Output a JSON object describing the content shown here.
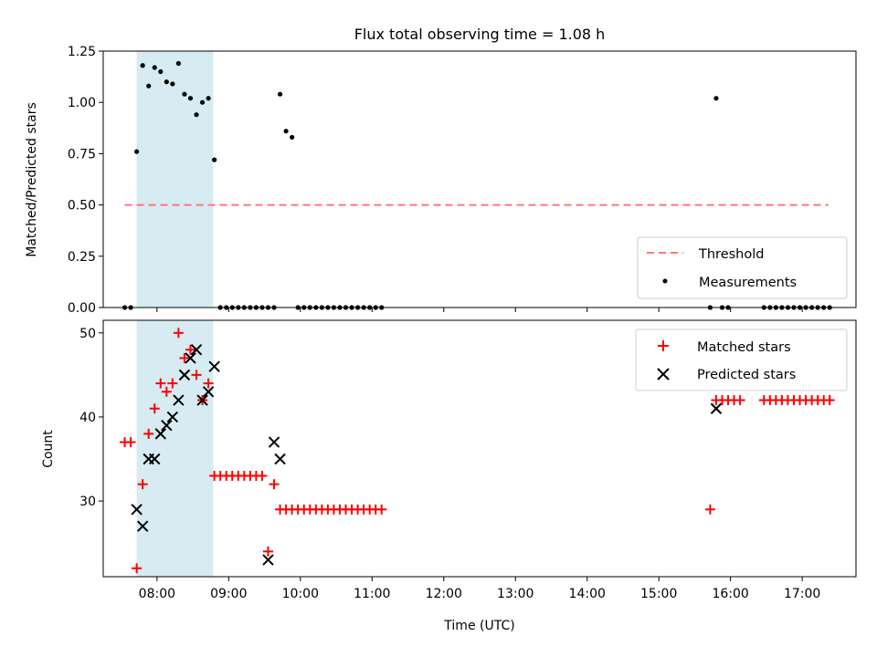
{
  "chart_data": [
    {
      "type": "scatter",
      "title": "Flux total observing time = 1.08 h",
      "ylabel": "Matched/Predicted stars",
      "xlabel": "",
      "ylim": [
        0,
        1.25
      ],
      "xlim": [
        "07:15",
        "17:45"
      ],
      "yticks": [
        "0.00",
        "0.25",
        "0.50",
        "0.75",
        "1.00",
        "1.25"
      ],
      "shaded_span": [
        "07:43",
        "08:47"
      ],
      "threshold": {
        "value": 0.5,
        "from": "07:33",
        "to": "17:22",
        "color": "#ff7777"
      },
      "legend": {
        "position": "lower-right",
        "entries": [
          "Threshold",
          "Measurements"
        ]
      },
      "series": [
        {
          "name": "Measurements",
          "color": "#000000",
          "x": [
            "07:33",
            "07:38",
            "07:43",
            "07:48",
            "07:53",
            "07:58",
            "08:03",
            "08:08",
            "08:13",
            "08:18",
            "08:23",
            "08:28",
            "08:33",
            "08:38",
            "08:43",
            "08:48",
            "08:53",
            "08:58",
            "09:03",
            "09:08",
            "09:13",
            "09:18",
            "09:23",
            "09:28",
            "09:33",
            "09:38",
            "09:43",
            "09:48",
            "09:53",
            "09:58",
            "10:03",
            "10:08",
            "10:13",
            "10:18",
            "10:23",
            "10:28",
            "10:33",
            "10:38",
            "10:43",
            "10:48",
            "10:53",
            "10:58",
            "11:03",
            "11:08",
            "15:43",
            "15:48",
            "15:53",
            "15:58",
            "16:28",
            "16:33",
            "16:38",
            "16:43",
            "16:48",
            "16:53",
            "16:58",
            "17:03",
            "17:08",
            "17:13",
            "17:18",
            "17:23"
          ],
          "y": [
            0,
            0,
            0.76,
            1.18,
            1.08,
            1.17,
            1.15,
            1.1,
            1.09,
            1.19,
            1.04,
            1.02,
            0.94,
            1.0,
            1.02,
            0.72,
            0,
            0,
            0,
            0,
            0,
            0,
            0,
            0,
            0,
            0,
            1.04,
            0.86,
            0.83,
            0,
            0,
            0,
            0,
            0,
            0,
            0,
            0,
            0,
            0,
            0,
            0,
            0,
            0,
            0,
            0,
            1.02,
            0,
            0,
            0,
            0,
            0,
            0,
            0,
            0,
            0,
            0,
            0,
            0,
            0,
            0
          ]
        }
      ]
    },
    {
      "type": "scatter",
      "title": "",
      "ylabel": "Count",
      "xlabel": "Time (UTC)",
      "ylim": [
        21,
        51.5
      ],
      "xlim": [
        "07:15",
        "17:45"
      ],
      "yticks": [
        "30",
        "40",
        "50"
      ],
      "xticks": [
        "08:00",
        "09:00",
        "10:00",
        "11:00",
        "12:00",
        "13:00",
        "14:00",
        "15:00",
        "16:00",
        "17:00"
      ],
      "shaded_span": [
        "07:43",
        "08:47"
      ],
      "legend": {
        "position": "top-right",
        "entries": [
          "Matched stars",
          "Predicted stars"
        ]
      },
      "series": [
        {
          "name": "Matched stars",
          "marker": "+",
          "color": "#ff0000",
          "x": [
            "07:33",
            "07:38",
            "07:43",
            "07:48",
            "07:53",
            "07:58",
            "08:03",
            "08:08",
            "08:13",
            "08:18",
            "08:23",
            "08:28",
            "08:33",
            "08:38",
            "08:43",
            "08:48",
            "08:53",
            "08:58",
            "09:03",
            "09:08",
            "09:13",
            "09:18",
            "09:23",
            "09:28",
            "09:33",
            "09:38",
            "09:43",
            "09:48",
            "09:53",
            "09:58",
            "10:03",
            "10:08",
            "10:13",
            "10:18",
            "10:23",
            "10:28",
            "10:33",
            "10:38",
            "10:43",
            "10:48",
            "10:53",
            "10:58",
            "11:03",
            "11:08",
            "15:43",
            "15:48",
            "15:53",
            "15:58",
            "16:03",
            "16:08",
            "16:28",
            "16:33",
            "16:38",
            "16:43",
            "16:48",
            "16:53",
            "16:58",
            "17:03",
            "17:08",
            "17:13",
            "17:18",
            "17:23"
          ],
          "y": [
            37,
            37,
            22,
            32,
            38,
            41,
            44,
            43,
            44,
            50,
            47,
            48,
            45,
            42,
            44,
            33,
            33,
            33,
            33,
            33,
            33,
            33,
            33,
            33,
            24,
            32,
            29,
            29,
            29,
            29,
            29,
            29,
            29,
            29,
            29,
            29,
            29,
            29,
            29,
            29,
            29,
            29,
            29,
            29,
            29,
            42,
            42,
            42,
            42,
            42,
            42,
            42,
            42,
            42,
            42,
            42,
            42,
            42,
            42,
            42,
            42,
            42
          ]
        },
        {
          "name": "Predicted stars",
          "marker": "x",
          "color": "#000000",
          "x": [
            "07:43",
            "07:48",
            "07:53",
            "07:58",
            "08:03",
            "08:08",
            "08:13",
            "08:18",
            "08:23",
            "08:28",
            "08:33",
            "08:38",
            "08:43",
            "08:48",
            "09:33",
            "09:38",
            "09:43",
            "15:48"
          ],
          "y": [
            29,
            27,
            35,
            35,
            38,
            39,
            40,
            42,
            45,
            47,
            48,
            42,
            43,
            46,
            23,
            37,
            35,
            41
          ]
        }
      ]
    }
  ]
}
